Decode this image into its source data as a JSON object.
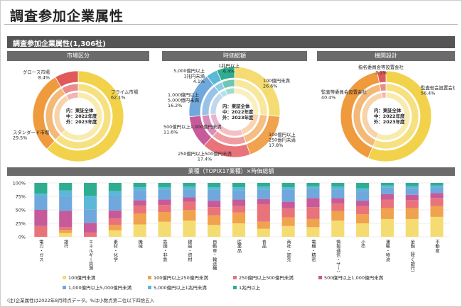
{
  "page_title": "調査参加企業属性",
  "banner": "調査参加企業属性(1,306社)",
  "center_label": [
    "内：東証全体",
    "中：2022年度",
    "外：2023年度"
  ],
  "footnote": "(注)企業属性は2022年8月時点データ。%は小数点第二位以下四捨五入",
  "colors": {
    "prime": "#f2d24a",
    "standard": "#ef9a3d",
    "growth": "#e05a5a",
    "cap1": "#f5dc72",
    "cap2": "#f0a24e",
    "cap3": "#e9737a",
    "cap4": "#c75a9a",
    "cap5": "#6fa8dc",
    "cap6": "#5bb8d8",
    "cap7": "#2fae8f",
    "gov1": "#f2d24a",
    "gov2": "#ef9a3d",
    "gov3": "#e05a5a"
  },
  "chart_data": [
    {
      "type": "pie",
      "title": "市場区分",
      "labels": [
        "プライム市場",
        "スタンダード市場",
        "グロース市場"
      ],
      "values": [
        62.1,
        29.5,
        8.4
      ],
      "value_labels": [
        "62.1%",
        "29.5%",
        "8.4%"
      ]
    },
    {
      "type": "pie",
      "title": "時価総額",
      "labels": [
        "100億円未満",
        "100億円以上250億円未満",
        "250億円以上500億円未満",
        "500億円以上1,000億円未満",
        "1,000億円以上5,000億円未満",
        "5,000億円以上1兆円未満",
        "1兆円以上"
      ],
      "label_lines": [
        [
          "100億円未満"
        ],
        [
          "100億円以上",
          "250億円未満"
        ],
        [
          "250億円以上500億円未満"
        ],
        [
          "500億円以上1,000億円未満"
        ],
        [
          "1,000億円以上",
          "5,000億円未満"
        ],
        [
          "5,000億円以上",
          "1兆円未満"
        ],
        [
          "1兆円以上"
        ]
      ],
      "values": [
        26.6,
        17.8,
        17.4,
        11.6,
        16.2,
        4.1,
        6.4
      ],
      "value_labels": [
        "26.6%",
        "17.8%",
        "17.4%",
        "11.6%",
        "16.2%",
        "4.1%",
        "6.4%"
      ]
    },
    {
      "type": "pie",
      "title": "機関設計",
      "labels": [
        "監査役会設置会社",
        "監査等委員会設置会社",
        "指名委員会等設置会社"
      ],
      "values": [
        56.4,
        40.4,
        3.1
      ],
      "value_labels": [
        "56.4%",
        "40.4%",
        "3.1%"
      ]
    },
    {
      "type": "bar",
      "title": "業種（TOPIX17業種）×時価総額",
      "y_ticks": [
        "100%",
        "75%",
        "50%",
        "25%",
        "0%"
      ],
      "ylim": [
        0,
        100
      ],
      "categories": [
        "電力・ガス",
        "銀行",
        "エネルギー資源",
        "素材・化学",
        "機械",
        "鉄鋼・非鉄",
        "建設・資材",
        "自動車・輸送機",
        "医薬品",
        "食品",
        "商社・卸売",
        "電機・精密",
        "情報通信・サービスその他",
        "小売",
        "運輸・物流",
        "金融（除く銀行）",
        "不動産"
      ],
      "series": [
        {
          "name": "100億円未満",
          "values": [
            0,
            7,
            0,
            12,
            23,
            28,
            30,
            22,
            25,
            15,
            20,
            18,
            30,
            25,
            33,
            33,
            37
          ]
        },
        {
          "name": "100億円以上250億円未満",
          "values": [
            0,
            6,
            0,
            10,
            20,
            18,
            20,
            18,
            20,
            13,
            16,
            15,
            18,
            17,
            20,
            20,
            20
          ]
        },
        {
          "name": "250億円以上500億円未満",
          "values": [
            20,
            5,
            8,
            12,
            15,
            13,
            15,
            15,
            12,
            32,
            17,
            22,
            14,
            15,
            16,
            15,
            15
          ]
        },
        {
          "name": "500億円以上1,000億円未満",
          "values": [
            30,
            30,
            18,
            15,
            10,
            10,
            8,
            12,
            12,
            10,
            12,
            17,
            10,
            10,
            10,
            10,
            9
          ]
        },
        {
          "name": "1,000億円以上5,000億円未満",
          "values": [
            25,
            28,
            25,
            28,
            18,
            18,
            15,
            20,
            17,
            17,
            22,
            18,
            16,
            18,
            12,
            12,
            11
          ]
        },
        {
          "name": "5,000億円以上1兆円未満",
          "values": [
            5,
            10,
            25,
            8,
            6,
            5,
            5,
            5,
            6,
            6,
            5,
            4,
            5,
            5,
            4,
            4,
            3
          ]
        },
        {
          "name": "1兆円以上",
          "values": [
            20,
            14,
            24,
            15,
            8,
            8,
            7,
            8,
            8,
            7,
            8,
            6,
            7,
            10,
            5,
            6,
            5
          ]
        }
      ]
    }
  ]
}
